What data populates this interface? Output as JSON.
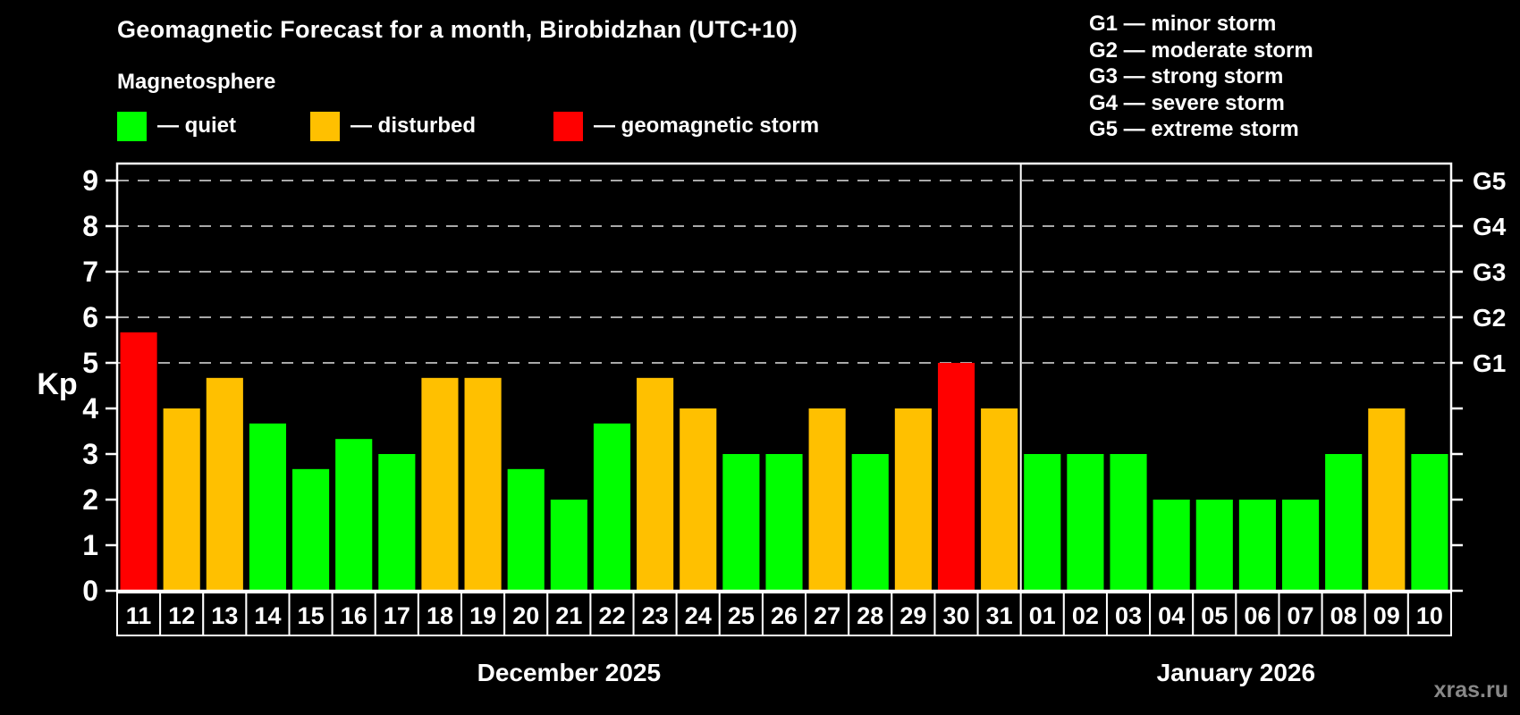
{
  "header": {
    "title": "Geomagnetic Forecast for a month, Birobidzhan (UTC+10)",
    "subtitle": "Magnetosphere",
    "legend": [
      {
        "id": "quiet",
        "label": "— quiet",
        "color": "#00ff00"
      },
      {
        "id": "disturbed",
        "label": "— disturbed",
        "color": "#ffc000"
      },
      {
        "id": "storm",
        "label": "— geomagnetic storm",
        "color": "#ff0000"
      }
    ],
    "storm_scale": [
      "G1 — minor storm",
      "G2 — moderate storm",
      "G3 — strong storm",
      "G4 — severe storm",
      "G5 — extreme storm"
    ]
  },
  "watermark": "xras.ru",
  "chart_data": {
    "type": "bar",
    "ylabel": "Kp",
    "ylim": [
      0,
      9.35
    ],
    "yticks": [
      0,
      1,
      2,
      3,
      4,
      5,
      6,
      7,
      8,
      9
    ],
    "gridlines_kp": [
      5,
      6,
      7,
      8,
      9
    ],
    "grid_style": "dashed horizontal",
    "right_axis_labels": [
      {
        "kp": 5,
        "label": "G1"
      },
      {
        "kp": 6,
        "label": "G2"
      },
      {
        "kp": 7,
        "label": "G3"
      },
      {
        "kp": 8,
        "label": "G4"
      },
      {
        "kp": 9,
        "label": "G5"
      }
    ],
    "colors": {
      "quiet": "#00ff00",
      "disturbed": "#ffc000",
      "storm": "#ff0000"
    },
    "months": [
      {
        "label": "December 2025",
        "days": [
          {
            "day": "11",
            "kp": 5.67,
            "status": "storm"
          },
          {
            "day": "12",
            "kp": 4.0,
            "status": "disturbed"
          },
          {
            "day": "13",
            "kp": 4.67,
            "status": "disturbed"
          },
          {
            "day": "14",
            "kp": 3.67,
            "status": "quiet"
          },
          {
            "day": "15",
            "kp": 2.67,
            "status": "quiet"
          },
          {
            "day": "16",
            "kp": 3.33,
            "status": "quiet"
          },
          {
            "day": "17",
            "kp": 3.0,
            "status": "quiet"
          },
          {
            "day": "18",
            "kp": 4.67,
            "status": "disturbed"
          },
          {
            "day": "19",
            "kp": 4.67,
            "status": "disturbed"
          },
          {
            "day": "20",
            "kp": 2.67,
            "status": "quiet"
          },
          {
            "day": "21",
            "kp": 2.0,
            "status": "quiet"
          },
          {
            "day": "22",
            "kp": 3.67,
            "status": "quiet"
          },
          {
            "day": "23",
            "kp": 4.67,
            "status": "disturbed"
          },
          {
            "day": "24",
            "kp": 4.0,
            "status": "disturbed"
          },
          {
            "day": "25",
            "kp": 3.0,
            "status": "quiet"
          },
          {
            "day": "26",
            "kp": 3.0,
            "status": "quiet"
          },
          {
            "day": "27",
            "kp": 4.0,
            "status": "disturbed"
          },
          {
            "day": "28",
            "kp": 3.0,
            "status": "quiet"
          },
          {
            "day": "29",
            "kp": 4.0,
            "status": "disturbed"
          },
          {
            "day": "30",
            "kp": 5.0,
            "status": "storm"
          },
          {
            "day": "31",
            "kp": 4.0,
            "status": "disturbed"
          }
        ]
      },
      {
        "label": "January 2026",
        "days": [
          {
            "day": "01",
            "kp": 3.0,
            "status": "quiet"
          },
          {
            "day": "02",
            "kp": 3.0,
            "status": "quiet"
          },
          {
            "day": "03",
            "kp": 3.0,
            "status": "quiet"
          },
          {
            "day": "04",
            "kp": 2.0,
            "status": "quiet"
          },
          {
            "day": "05",
            "kp": 2.0,
            "status": "quiet"
          },
          {
            "day": "06",
            "kp": 2.0,
            "status": "quiet"
          },
          {
            "day": "07",
            "kp": 2.0,
            "status": "quiet"
          },
          {
            "day": "08",
            "kp": 3.0,
            "status": "quiet"
          },
          {
            "day": "09",
            "kp": 4.0,
            "status": "disturbed"
          },
          {
            "day": "10",
            "kp": 3.0,
            "status": "quiet"
          }
        ]
      }
    ]
  }
}
